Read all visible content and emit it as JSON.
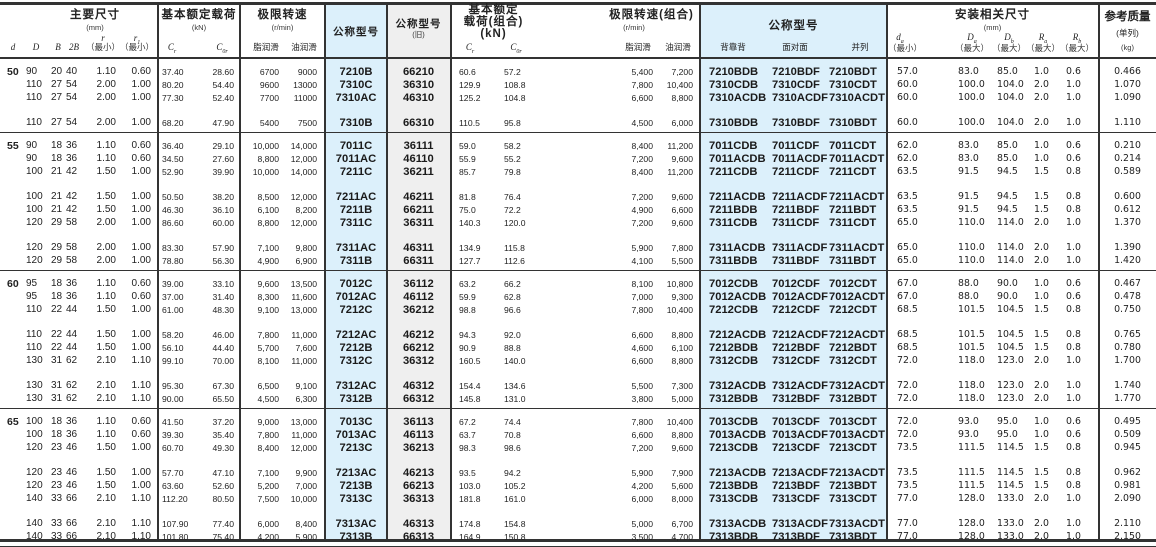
{
  "header": {
    "main_dims": {
      "title": "主要尺寸",
      "unit": "(mm)",
      "d": "d",
      "D": "D",
      "B": "B",
      "2B": "2B",
      "r": "r",
      "r1": "r",
      "r1_sub": "1",
      "min": "（最小）"
    },
    "load": {
      "title": "基本额定载荷",
      "unit": "(kN)",
      "cr": "C",
      "cr_sub": "r",
      "cor": "C",
      "cor_sub": "0r"
    },
    "speed": {
      "title": "极限转速",
      "unit": "(r/min)",
      "grease": "脂润滑",
      "oil": "油润滑"
    },
    "model": {
      "title": "公称型号"
    },
    "old_model": {
      "title": "公称型号",
      "sub": "(旧)"
    },
    "combo_load": {
      "title1": "基本额定",
      "title2": "载荷(组合)",
      "unit": "(kN)",
      "cr": "C",
      "cr_sub": "r",
      "cor": "C",
      "cor_sub": "0r"
    },
    "combo_speed": {
      "title": "极限转速(组合)",
      "unit": "(r/min)",
      "grease": "脂润滑",
      "oil": "油润滑"
    },
    "combo_model": {
      "title": "公称型号",
      "db": "背靠背",
      "df": "面对面",
      "dt": "并列"
    },
    "mount": {
      "title": "安装相关尺寸",
      "unit": "(mm)",
      "da": "d",
      "da_sub": "a",
      "Da": "D",
      "Da_sub": "a",
      "Db": "D",
      "Db_sub": "b",
      "Ra": "R",
      "Ra_sub": "a",
      "Rb": "R",
      "Rb_sub": "b",
      "min": "（最小）",
      "max": "（最大）"
    },
    "mass": {
      "title": "参考质量",
      "sub": "(单列)",
      "unit": "(kg)"
    }
  },
  "colors": {
    "model_bg": "#dcf0fb",
    "old_model_bg": "#efefef",
    "rule": "#333333"
  },
  "groups": [
    {
      "d": "50",
      "subsets": [
        [
          [
            "90",
            "20",
            "40",
            "1.10",
            "0.60",
            "37.40",
            "28.60",
            "6700",
            "9000",
            "7210B",
            "66210",
            "60.6",
            "57.2",
            "5,400",
            "7,200",
            "7210BDB",
            "7210BDF",
            "7210BDT",
            "57.0",
            "83.0",
            "85.0",
            "1.0",
            "0.6",
            "0.466"
          ],
          [
            "110",
            "27",
            "54",
            "2.00",
            "1.00",
            "80.20",
            "54.40",
            "9600",
            "13000",
            "7310C",
            "36310",
            "129.9",
            "108.8",
            "7,800",
            "10,400",
            "7310CDB",
            "7310CDF",
            "7310CDT",
            "60.0",
            "100.0",
            "104.0",
            "2.0",
            "1.0",
            "1.070"
          ],
          [
            "110",
            "27",
            "54",
            "2.00",
            "1.00",
            "77.30",
            "52.40",
            "7700",
            "11000",
            "7310AC",
            "46310",
            "125.2",
            "104.8",
            "6,600",
            "8,800",
            "7310ACDB",
            "7310ACDF",
            "7310ACDT",
            "60.0",
            "100.0",
            "104.0",
            "2.0",
            "1.0",
            "1.090"
          ]
        ],
        [
          [
            "110",
            "27",
            "54",
            "2.00",
            "1.00",
            "68.20",
            "47.90",
            "5400",
            "7500",
            "7310B",
            "66310",
            "110.5",
            "95.8",
            "4,500",
            "6,000",
            "7310BDB",
            "7310BDF",
            "7310BDT",
            "60.0",
            "100.0",
            "104.0",
            "2.0",
            "1.0",
            "1.110"
          ]
        ]
      ]
    },
    {
      "d": "55",
      "subsets": [
        [
          [
            "90",
            "18",
            "36",
            "1.10",
            "0.60",
            "36.40",
            "29.10",
            "10,000",
            "14,000",
            "7011C",
            "36111",
            "59.0",
            "58.2",
            "8,400",
            "11,200",
            "7011CDB",
            "7011CDF",
            "7011CDT",
            "62.0",
            "83.0",
            "85.0",
            "1.0",
            "0.6",
            "0.210"
          ],
          [
            "90",
            "18",
            "36",
            "1.10",
            "0.60",
            "34.50",
            "27.60",
            "8,800",
            "12,000",
            "7011AC",
            "46110",
            "55.9",
            "55.2",
            "7,200",
            "9,600",
            "7011ACDB",
            "7011ACDF",
            "7011ACDT",
            "62.0",
            "83.0",
            "85.0",
            "1.0",
            "0.6",
            "0.214"
          ],
          [
            "100",
            "21",
            "42",
            "1.50",
            "1.00",
            "52.90",
            "39.90",
            "10,000",
            "14,000",
            "7211C",
            "36211",
            "85.7",
            "79.8",
            "8,400",
            "11,200",
            "7211CDB",
            "7211CDF",
            "7211CDT",
            "63.5",
            "91.5",
            "94.5",
            "1.5",
            "0.8",
            "0.589"
          ]
        ],
        [
          [
            "100",
            "21",
            "42",
            "1.50",
            "1.00",
            "50.50",
            "38.20",
            "8,500",
            "12,000",
            "7211AC",
            "46211",
            "81.8",
            "76.4",
            "7,200",
            "9,600",
            "7211ACDB",
            "7211ACDF",
            "7211ACDT",
            "63.5",
            "91.5",
            "94.5",
            "1.5",
            "0.8",
            "0.600"
          ],
          [
            "100",
            "21",
            "42",
            "1.50",
            "1.00",
            "46.30",
            "36.10",
            "6,100",
            "8,200",
            "7211B",
            "66211",
            "75.0",
            "72.2",
            "4,900",
            "6,600",
            "7211BDB",
            "7211BDF",
            "7211BDT",
            "63.5",
            "91.5",
            "94.5",
            "1.5",
            "0.8",
            "0.612"
          ],
          [
            "120",
            "29",
            "58",
            "2.00",
            "1.00",
            "86.60",
            "60.00",
            "8,800",
            "12,000",
            "7311C",
            "36311",
            "140.3",
            "120.0",
            "7,200",
            "9,600",
            "7311CDB",
            "7311CDF",
            "7311CDT",
            "65.0",
            "110.0",
            "114.0",
            "2.0",
            "1.0",
            "1.370"
          ]
        ],
        [
          [
            "120",
            "29",
            "58",
            "2.00",
            "1.00",
            "83.30",
            "57.90",
            "7,100",
            "9,800",
            "7311AC",
            "46311",
            "134.9",
            "115.8",
            "5,900",
            "7,800",
            "7311ACDB",
            "7311ACDF",
            "7311ACDT",
            "65.0",
            "110.0",
            "114.0",
            "2.0",
            "1.0",
            "1.390"
          ],
          [
            "120",
            "29",
            "58",
            "2.00",
            "1.00",
            "78.80",
            "56.30",
            "4,900",
            "6,900",
            "7311B",
            "66311",
            "127.7",
            "112.6",
            "4,100",
            "5,500",
            "7311BDB",
            "7311BDF",
            "7311BDT",
            "65.0",
            "110.0",
            "114.0",
            "2.0",
            "1.0",
            "1.420"
          ]
        ]
      ]
    },
    {
      "d": "60",
      "subsets": [
        [
          [
            "95",
            "18",
            "36",
            "1.10",
            "0.60",
            "39.00",
            "33.10",
            "9,600",
            "13,500",
            "7012C",
            "36112",
            "63.2",
            "66.2",
            "8,100",
            "10,800",
            "7012CDB",
            "7012CDF",
            "7012CDT",
            "67.0",
            "88.0",
            "90.0",
            "1.0",
            "0.6",
            "0.467"
          ],
          [
            "95",
            "18",
            "36",
            "1.10",
            "0.60",
            "37.00",
            "31.40",
            "8,300",
            "11,600",
            "7012AC",
            "46112",
            "59.9",
            "62.8",
            "7,000",
            "9,300",
            "7012ACDB",
            "7012ACDF",
            "7012ACDT",
            "67.0",
            "88.0",
            "90.0",
            "1.0",
            "0.6",
            "0.478"
          ],
          [
            "110",
            "22",
            "44",
            "1.50",
            "1.00",
            "61.00",
            "48.30",
            "9,100",
            "13,000",
            "7212C",
            "36212",
            "98.8",
            "96.6",
            "7,800",
            "10,400",
            "7212CDB",
            "7212CDF",
            "7212CDT",
            "68.5",
            "101.5",
            "104.5",
            "1.5",
            "0.8",
            "0.750"
          ]
        ],
        [
          [
            "110",
            "22",
            "44",
            "1.50",
            "1.00",
            "58.20",
            "46.00",
            "7,800",
            "11,000",
            "7212AC",
            "46212",
            "94.3",
            "92.0",
            "6,600",
            "8,800",
            "7212ACDB",
            "7212ACDF",
            "7212ACDT",
            "68.5",
            "101.5",
            "104.5",
            "1.5",
            "0.8",
            "0.765"
          ],
          [
            "110",
            "22",
            "44",
            "1.50",
            "1.00",
            "56.10",
            "44.40",
            "5,700",
            "7,600",
            "7212B",
            "66212",
            "90.9",
            "88.8",
            "4,600",
            "6,100",
            "7212BDB",
            "7212BDF",
            "7212BDT",
            "68.5",
            "101.5",
            "104.5",
            "1.5",
            "0.8",
            "0.780"
          ],
          [
            "130",
            "31",
            "62",
            "2.10",
            "1.10",
            "99.10",
            "70.00",
            "8,100",
            "11,000",
            "7312C",
            "36312",
            "160.5",
            "140.0",
            "6,600",
            "8,800",
            "7312CDB",
            "7312CDF",
            "7312CDT",
            "72.0",
            "118.0",
            "123.0",
            "2.0",
            "1.0",
            "1.700"
          ]
        ],
        [
          [
            "130",
            "31",
            "62",
            "2.10",
            "1.10",
            "95.30",
            "67.30",
            "6,500",
            "9,100",
            "7312AC",
            "46312",
            "154.4",
            "134.6",
            "5,500",
            "7,300",
            "7312ACDB",
            "7312ACDF",
            "7312ACDT",
            "72.0",
            "118.0",
            "123.0",
            "2.0",
            "1.0",
            "1.740"
          ],
          [
            "130",
            "31",
            "62",
            "2.10",
            "1.10",
            "90.00",
            "65.50",
            "4,500",
            "6,300",
            "7312B",
            "66312",
            "145.8",
            "131.0",
            "3,800",
            "5,000",
            "7312BDB",
            "7312BDF",
            "7312BDT",
            "72.0",
            "118.0",
            "123.0",
            "2.0",
            "1.0",
            "1.770"
          ]
        ]
      ]
    },
    {
      "d": "65",
      "subsets": [
        [
          [
            "100",
            "18",
            "36",
            "1.10",
            "0.60",
            "41.50",
            "37.20",
            "9,000",
            "13,000",
            "7013C",
            "36113",
            "67.2",
            "74.4",
            "7,800",
            "10,400",
            "7013CDB",
            "7013CDF",
            "7013CDT",
            "72.0",
            "93.0",
            "95.0",
            "1.0",
            "0.6",
            "0.495"
          ],
          [
            "100",
            "18",
            "36",
            "1.10",
            "0.60",
            "39.30",
            "35.40",
            "7,800",
            "11,000",
            "7013AC",
            "46113",
            "63.7",
            "70.8",
            "6,600",
            "8,800",
            "7013ACDB",
            "7013ACDF",
            "7013ACDT",
            "72.0",
            "93.0",
            "95.0",
            "1.0",
            "0.6",
            "0.509"
          ],
          [
            "120",
            "23",
            "46",
            "1.50",
            "1.00",
            "60.70",
            "49.30",
            "8,400",
            "12,000",
            "7213C",
            "36213",
            "98.3",
            "98.6",
            "7,200",
            "9,600",
            "7213CDB",
            "7213CDF",
            "7213CDT",
            "73.5",
            "111.5",
            "114.5",
            "1.5",
            "0.8",
            "0.945"
          ]
        ],
        [
          [
            "120",
            "23",
            "46",
            "1.50",
            "1.00",
            "57.70",
            "47.10",
            "7,100",
            "9,900",
            "7213AC",
            "46213",
            "93.5",
            "94.2",
            "5,900",
            "7,900",
            "7213ACDB",
            "7213ACDF",
            "7213ACDT",
            "73.5",
            "111.5",
            "114.5",
            "1.5",
            "0.8",
            "0.962"
          ],
          [
            "120",
            "23",
            "46",
            "1.50",
            "1.00",
            "63.60",
            "52.60",
            "5,200",
            "7,000",
            "7213B",
            "66213",
            "103.0",
            "105.2",
            "4,200",
            "5,600",
            "7213BDB",
            "7213BDF",
            "7213BDT",
            "73.5",
            "111.5",
            "114.5",
            "1.5",
            "0.8",
            "0.981"
          ],
          [
            "140",
            "33",
            "66",
            "2.10",
            "1.10",
            "112.20",
            "80.50",
            "7,500",
            "10,000",
            "7313C",
            "36313",
            "181.8",
            "161.0",
            "6,000",
            "8,000",
            "7313CDB",
            "7313CDF",
            "7313CDT",
            "77.0",
            "128.0",
            "133.0",
            "2.0",
            "1.0",
            "2.090"
          ]
        ],
        [
          [
            "140",
            "33",
            "66",
            "2.10",
            "1.10",
            "107.90",
            "77.40",
            "6,000",
            "8,400",
            "7313AC",
            "46313",
            "174.8",
            "154.8",
            "5,000",
            "6,700",
            "7313ACDB",
            "7313ACDF",
            "7313ACDT",
            "77.0",
            "128.0",
            "133.0",
            "2.0",
            "1.0",
            "2.110"
          ],
          [
            "140",
            "33",
            "66",
            "2.10",
            "1.10",
            "101.80",
            "75.40",
            "4,200",
            "5,900",
            "7313B",
            "66313",
            "164.9",
            "150.8",
            "3,500",
            "4,700",
            "7313BDB",
            "7313BDF",
            "7313BDT",
            "77.0",
            "128.0",
            "133.0",
            "2.0",
            "1.0",
            "2.150"
          ]
        ]
      ]
    }
  ]
}
